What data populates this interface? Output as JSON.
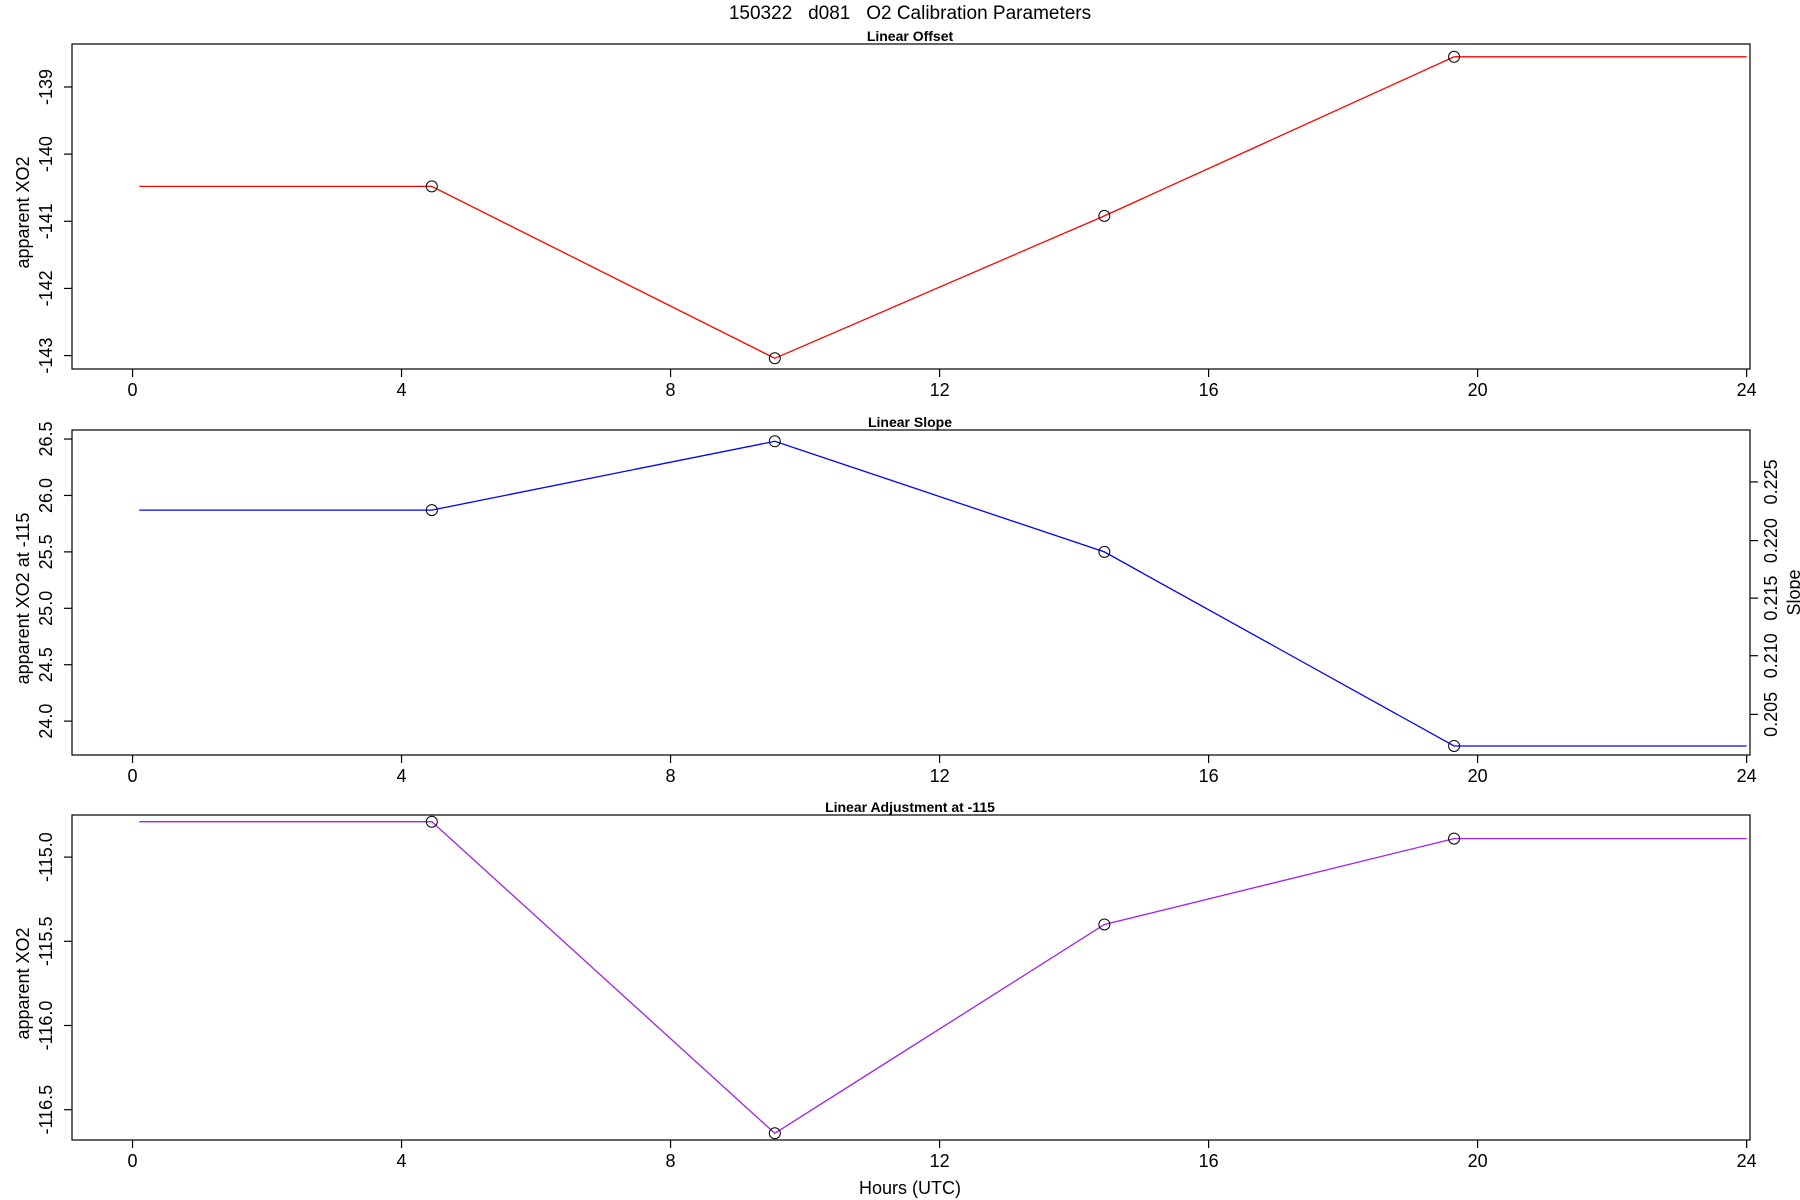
{
  "main_title": "150322   d081   O2 Calibration Parameters",
  "x_axis_title": "Hours (UTC)",
  "chart_data": [
    {
      "type": "line",
      "title": "Linear Offset",
      "ylabel": "apparent XO2",
      "color": "#ff0000",
      "x": [
        0.1,
        4.45,
        9.55,
        14.45,
        19.65,
        24.0
      ],
      "y": [
        -140.48,
        -140.48,
        -143.04,
        -140.92,
        -138.55,
        -138.55
      ],
      "markers": [
        false,
        true,
        true,
        true,
        true,
        false
      ],
      "xlim": [
        -0.9,
        24.05
      ],
      "ylim": [
        -143.2,
        -138.36
      ],
      "xticks": [
        0,
        4,
        8,
        12,
        16,
        20,
        24
      ],
      "yticks": [
        -143,
        -142,
        -141,
        -140,
        -139
      ],
      "yticklabels": [
        "-143",
        "-142",
        "-141",
        "-140",
        "-139"
      ],
      "grid": false
    },
    {
      "type": "line",
      "title": "Linear Slope",
      "ylabel": "apparent XO2 at -115",
      "y2label": "Slope",
      "color": "#0000ff",
      "x": [
        0.1,
        4.45,
        9.55,
        14.45,
        19.65,
        24.0
      ],
      "y": [
        25.87,
        25.87,
        26.48,
        25.5,
        23.78,
        23.78
      ],
      "markers": [
        false,
        true,
        true,
        true,
        true,
        false
      ],
      "xlim": [
        -0.9,
        24.05
      ],
      "ylim": [
        23.7,
        26.58
      ],
      "xticks": [
        0,
        4,
        8,
        12,
        16,
        20,
        24
      ],
      "yticks": [
        24.0,
        24.5,
        25.0,
        25.5,
        26.0,
        26.5
      ],
      "yticklabels": [
        "24.0",
        "24.5",
        "25.0",
        "25.5",
        "26.0",
        "26.5"
      ],
      "y2ticks": [
        23.95,
        24.47,
        24.98,
        25.5,
        26.02,
        26.53
      ],
      "y2ticklabels": [
        "0.205",
        "0.210",
        "0.215",
        "0.220",
        "0.225"
      ],
      "y2tickvalues": [
        24.06,
        24.58,
        25.09,
        25.6,
        26.12
      ],
      "grid": false
    },
    {
      "type": "line",
      "title": "Linear Adjustment at -115",
      "ylabel": "apparent XO2",
      "color": "#a020f0",
      "x": [
        0.1,
        4.45,
        9.55,
        14.45,
        19.65,
        24.0
      ],
      "y": [
        -114.79,
        -114.79,
        -116.64,
        -115.4,
        -114.89,
        -114.89
      ],
      "markers": [
        false,
        true,
        true,
        true,
        true,
        false
      ],
      "xlim": [
        -0.9,
        24.05
      ],
      "ylim": [
        -116.68,
        -114.75
      ],
      "xticks": [
        0,
        4,
        8,
        12,
        16,
        20,
        24
      ],
      "yticks": [
        -116.5,
        -116.0,
        -115.5,
        -115.0
      ],
      "yticklabels": [
        "-116.5",
        "-116.0",
        "-115.5",
        "-115.0"
      ],
      "grid": false
    }
  ]
}
